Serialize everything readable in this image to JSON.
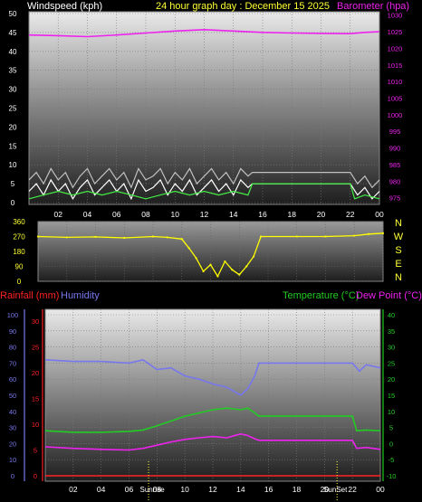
{
  "top_panel": {
    "left_label": "Windspeed (kph)",
    "center_label": "24 hour graph day : December 15 2025",
    "right_label": "Barometer (hpa)"
  },
  "middle_panel": {
    "direction_labels": [
      "N",
      "W",
      "S",
      "E",
      "N"
    ]
  },
  "bottom_panel": {
    "rainfall_label": "Rainfall (mm)",
    "humidity_label": "Humidity",
    "temperature_label": "Temperature (°C)",
    "dewpoint_label": "Dew Point (°C)",
    "sunrise_label": "Sunrise",
    "sunset_label": "SunSet"
  },
  "colors": {
    "wind": "#ffffff",
    "gust": "#c0c0c0",
    "wind_avg": "#44ee44",
    "barometer": "#ee22ee",
    "direction": "#ffff00",
    "rainfall": "#ff2222",
    "humidity": "#7777ee",
    "temperature": "#22cc22",
    "dewpoint": "#ee22ee",
    "sun_marker": "#ffff33"
  },
  "chart_data": [
    {
      "type": "line",
      "name": "wind_barometer",
      "x_ticks": [
        "02",
        "04",
        "06",
        "08",
        "10",
        "12",
        "14",
        "16",
        "18",
        "20",
        "22",
        "00"
      ],
      "y_left_ticks": [
        0,
        5,
        10,
        15,
        20,
        25,
        30,
        35,
        40,
        45,
        50
      ],
      "y_left_lim": [
        0,
        50
      ],
      "y_right_ticks": [
        975,
        980,
        985,
        990,
        995,
        1000,
        1005,
        1010,
        1015,
        1020,
        1025,
        1030
      ],
      "y_right_lim": [
        973,
        1031
      ],
      "x_lim": [
        0,
        24
      ],
      "series": [
        {
          "key": "gust",
          "values": [
            [
              0,
              6
            ],
            [
              0.5,
              8
            ],
            [
              1,
              5
            ],
            [
              1.5,
              9
            ],
            [
              2,
              6
            ],
            [
              2.5,
              8
            ],
            [
              3,
              4
            ],
            [
              3.5,
              7
            ],
            [
              4,
              9
            ],
            [
              4.5,
              5
            ],
            [
              5,
              7
            ],
            [
              5.5,
              9
            ],
            [
              6,
              6
            ],
            [
              6.5,
              8
            ],
            [
              7,
              4
            ],
            [
              7.5,
              9
            ],
            [
              8,
              6
            ],
            [
              8.5,
              7
            ],
            [
              9,
              9
            ],
            [
              9.5,
              5
            ],
            [
              10,
              8
            ],
            [
              10.5,
              6
            ],
            [
              11,
              9
            ],
            [
              11.5,
              5
            ],
            [
              12,
              7
            ],
            [
              12.5,
              9
            ],
            [
              13,
              6
            ],
            [
              13.5,
              8
            ],
            [
              14,
              5
            ],
            [
              14.5,
              9
            ],
            [
              15,
              7
            ],
            [
              15.3,
              8
            ],
            [
              22,
              8
            ],
            [
              22.5,
              5
            ],
            [
              23,
              7
            ],
            [
              23.5,
              4
            ],
            [
              24,
              6
            ]
          ]
        },
        {
          "key": "wind",
          "values": [
            [
              0,
              3
            ],
            [
              0.5,
              5
            ],
            [
              1,
              2
            ],
            [
              1.5,
              6
            ],
            [
              2,
              3
            ],
            [
              2.5,
              5
            ],
            [
              3,
              1
            ],
            [
              3.5,
              4
            ],
            [
              4,
              6
            ],
            [
              4.5,
              2
            ],
            [
              5,
              4
            ],
            [
              5.5,
              6
            ],
            [
              6,
              3
            ],
            [
              6.5,
              5
            ],
            [
              7,
              1
            ],
            [
              7.5,
              6
            ],
            [
              8,
              3
            ],
            [
              8.5,
              4
            ],
            [
              9,
              6
            ],
            [
              9.5,
              2
            ],
            [
              10,
              5
            ],
            [
              10.5,
              3
            ],
            [
              11,
              6
            ],
            [
              11.5,
              2
            ],
            [
              12,
              4
            ],
            [
              12.5,
              6
            ],
            [
              13,
              3
            ],
            [
              13.5,
              5
            ],
            [
              14,
              2
            ],
            [
              14.5,
              6
            ],
            [
              15,
              4
            ],
            [
              15.3,
              5
            ],
            [
              22,
              5
            ],
            [
              22.5,
              2
            ],
            [
              23,
              4
            ],
            [
              23.5,
              1
            ],
            [
              24,
              3
            ]
          ]
        },
        {
          "key": "wind_avg",
          "values": [
            [
              0,
              1
            ],
            [
              1,
              2
            ],
            [
              2,
              3
            ],
            [
              3,
              2
            ],
            [
              4,
              3
            ],
            [
              5,
              2
            ],
            [
              6,
              3
            ],
            [
              7,
              2
            ],
            [
              8,
              1
            ],
            [
              9,
              2
            ],
            [
              10,
              3
            ],
            [
              11,
              2
            ],
            [
              12,
              3
            ],
            [
              13,
              2
            ],
            [
              14,
              3
            ],
            [
              15,
              2
            ],
            [
              15.3,
              5
            ],
            [
              22,
              5
            ],
            [
              22.3,
              1
            ],
            [
              23,
              2
            ],
            [
              24,
              1
            ]
          ]
        },
        {
          "key": "barometer",
          "values": [
            [
              0,
              1024
            ],
            [
              2,
              1023.8
            ],
            [
              4,
              1023.5
            ],
            [
              6,
              1024
            ],
            [
              8,
              1024.6
            ],
            [
              10,
              1025.2
            ],
            [
              12,
              1025.6
            ],
            [
              14,
              1025.2
            ],
            [
              16,
              1024.8
            ],
            [
              18,
              1024.6
            ],
            [
              20,
              1024.5
            ],
            [
              22,
              1024.4
            ],
            [
              23,
              1024.8
            ],
            [
              24,
              1025
            ]
          ]
        }
      ]
    },
    {
      "type": "scatter",
      "name": "wind_direction",
      "x_lim": [
        0,
        24
      ],
      "y_ticks": [
        0,
        90,
        180,
        270,
        360
      ],
      "y_lim": [
        0,
        360
      ],
      "series": [
        {
          "key": "direction",
          "values": [
            [
              0,
              270
            ],
            [
              2,
              265
            ],
            [
              4,
              268
            ],
            [
              6,
              262
            ],
            [
              8,
              270
            ],
            [
              9,
              265
            ],
            [
              10,
              255
            ],
            [
              10.5,
              200
            ],
            [
              11,
              140
            ],
            [
              11.5,
              60
            ],
            [
              12,
              100
            ],
            [
              12.5,
              30
            ],
            [
              13,
              120
            ],
            [
              13.5,
              70
            ],
            [
              14,
              40
            ],
            [
              14.5,
              90
            ],
            [
              15,
              150
            ],
            [
              15.5,
              270
            ],
            [
              18,
              270
            ],
            [
              20,
              270
            ],
            [
              22,
              275
            ],
            [
              23,
              285
            ],
            [
              24,
              290
            ]
          ]
        }
      ]
    },
    {
      "type": "line",
      "name": "temperature_humidity",
      "x_ticks": [
        "02",
        "04",
        "06",
        "08",
        "10",
        "12",
        "14",
        "16",
        "18",
        "20",
        "22",
        "00"
      ],
      "humidity_ticks": [
        0,
        10,
        20,
        30,
        40,
        50,
        60,
        70,
        80,
        90,
        100
      ],
      "rain_ticks": [
        0,
        5,
        10,
        15,
        20,
        25,
        30
      ],
      "temp_ticks": [
        -10,
        -5,
        0,
        5,
        10,
        15,
        20,
        25,
        30,
        35,
        40
      ],
      "humidity_lim": [
        0,
        100
      ],
      "temp_lim": [
        -10,
        40
      ],
      "sunrise_hour": 7.4,
      "sunset_hour": 20.9,
      "series": [
        {
          "key": "humidity",
          "values": [
            [
              0,
              72
            ],
            [
              2,
              71
            ],
            [
              4,
              71
            ],
            [
              6,
              70
            ],
            [
              7,
              72
            ],
            [
              8,
              66
            ],
            [
              9,
              67
            ],
            [
              10,
              62
            ],
            [
              11,
              60
            ],
            [
              12,
              57
            ],
            [
              13,
              55
            ],
            [
              14,
              50
            ],
            [
              14.5,
              54
            ],
            [
              15,
              62
            ],
            [
              15.3,
              70
            ],
            [
              22,
              70
            ],
            [
              22.5,
              65
            ],
            [
              23,
              69
            ],
            [
              24,
              67
            ]
          ]
        },
        {
          "key": "temperature",
          "values": [
            [
              0,
              4
            ],
            [
              2,
              3.5
            ],
            [
              4,
              3.5
            ],
            [
              6,
              3.8
            ],
            [
              7,
              4.2
            ],
            [
              8,
              5.5
            ],
            [
              9,
              7
            ],
            [
              10,
              8.5
            ],
            [
              11,
              9.5
            ],
            [
              12,
              10.5
            ],
            [
              13,
              11
            ],
            [
              14,
              10.5
            ],
            [
              14.5,
              11
            ],
            [
              15,
              9.5
            ],
            [
              15.3,
              8.5
            ],
            [
              22,
              8.5
            ],
            [
              22.3,
              4
            ],
            [
              23,
              4.2
            ],
            [
              24,
              4
            ]
          ]
        },
        {
          "key": "dewpoint",
          "values": [
            [
              0,
              -1
            ],
            [
              2,
              -1.5
            ],
            [
              4,
              -1.8
            ],
            [
              6,
              -2
            ],
            [
              7,
              -1.5
            ],
            [
              8,
              -0.5
            ],
            [
              9,
              0.5
            ],
            [
              10,
              1.3
            ],
            [
              11,
              1.8
            ],
            [
              12,
              2.2
            ],
            [
              13,
              1.8
            ],
            [
              14,
              3
            ],
            [
              14.5,
              2.5
            ],
            [
              15,
              1.5
            ],
            [
              15.3,
              1
            ],
            [
              22,
              1
            ],
            [
              22.3,
              -1.5
            ],
            [
              23,
              -1.2
            ],
            [
              24,
              -1.8
            ]
          ]
        },
        {
          "key": "rainfall",
          "values": [
            [
              0,
              0
            ],
            [
              24,
              0
            ]
          ]
        }
      ]
    }
  ]
}
